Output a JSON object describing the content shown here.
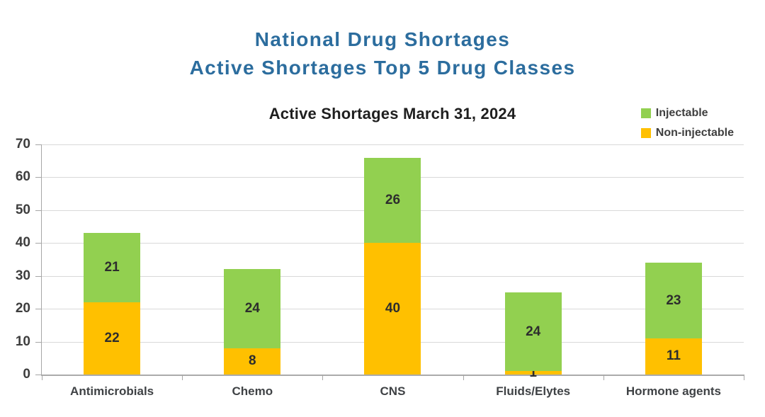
{
  "header": {
    "title_line1": "National Drug Shortages",
    "title_line2": "Active Shortages Top 5 Drug Classes",
    "title_color": "#2c6d9e"
  },
  "chart_data": {
    "type": "bar",
    "stacked": true,
    "title": "Active Shortages March 31, 2024",
    "categories": [
      "Antimicrobials",
      "Chemo",
      "CNS",
      "Fluids/Elytes",
      "Hormone agents"
    ],
    "series": [
      {
        "name": "Non-injectable",
        "color": "#FFC000",
        "values": [
          22,
          8,
          40,
          1,
          11
        ]
      },
      {
        "name": "Injectable",
        "color": "#92D050",
        "values": [
          21,
          24,
          26,
          24,
          23
        ]
      }
    ],
    "ylim": [
      0,
      70
    ],
    "yticks": [
      0,
      10,
      20,
      30,
      40,
      50,
      60,
      70
    ],
    "grid": true,
    "legend": {
      "position": "top-right",
      "order": [
        "Injectable",
        "Non-injectable"
      ]
    }
  }
}
